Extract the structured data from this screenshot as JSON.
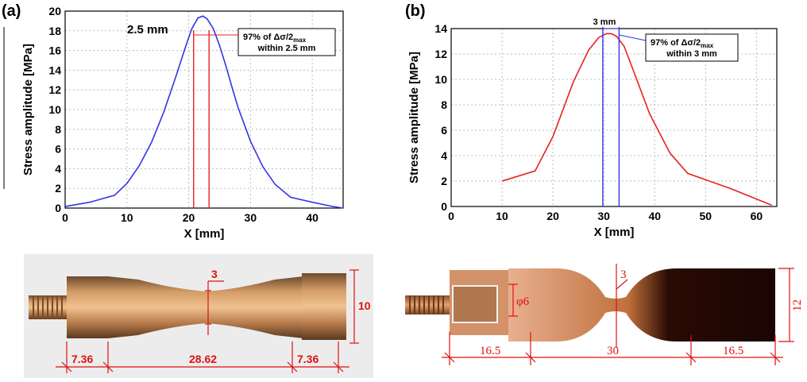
{
  "panels": {
    "a": {
      "label": "(a)"
    },
    "b": {
      "label": "(b)"
    }
  },
  "chart_data": [
    {
      "type": "line",
      "title": "",
      "xlabel": "X [mm]",
      "ylabel": "Stress amplitude [MPa]",
      "xlim": [
        0,
        45
      ],
      "ylim": [
        0,
        20
      ],
      "xticks": [
        0,
        10,
        20,
        30,
        40
      ],
      "yticks": [
        0,
        2,
        4,
        6,
        8,
        10,
        12,
        14,
        16,
        18,
        20
      ],
      "grid": true,
      "line_color": "#3333e6",
      "marker_color": "#e82020",
      "series": [
        {
          "x": [
            0,
            4,
            8,
            10,
            12,
            14,
            16,
            18,
            19.5,
            20.5,
            21.5,
            22.3,
            23,
            24,
            25,
            26,
            27,
            28,
            30,
            32,
            34,
            36.5,
            40,
            43,
            45
          ],
          "y": [
            0.15,
            0.6,
            1.3,
            2.5,
            4.3,
            6.7,
            9.8,
            13.5,
            16.4,
            18.2,
            19.3,
            19.5,
            19.2,
            18.2,
            16.5,
            14.5,
            12.3,
            10.2,
            6.8,
            4.2,
            2.4,
            1.1,
            0.6,
            0.2,
            0.0
          ]
        }
      ],
      "annotations": {
        "span_label": "2.5 mm",
        "box_line1": "97% of Δσ/2",
        "box_sub": "max",
        "box_line2": "within 2.5 mm",
        "markers_x": [
          20.8,
          23.3
        ]
      }
    },
    {
      "type": "line",
      "title": "",
      "xlabel": "X [mm]",
      "ylabel": "Stress amplitude [MPa]",
      "xlim": [
        0,
        64
      ],
      "ylim": [
        0,
        14
      ],
      "xticks": [
        0,
        10,
        20,
        30,
        40,
        50,
        60
      ],
      "yticks": [
        0,
        2,
        4,
        6,
        8,
        10,
        12,
        14
      ],
      "grid": true,
      "line_color": "#e82020",
      "marker_color": "#3333e6",
      "series": [
        {
          "x": [
            10,
            16.5,
            20,
            24,
            27,
            29,
            30.5,
            31.5,
            32.5,
            34,
            36,
            39,
            43,
            46.5,
            55,
            63
          ],
          "y": [
            2.0,
            2.8,
            5.5,
            9.8,
            12.3,
            13.3,
            13.6,
            13.6,
            13.4,
            12.6,
            10.5,
            7.3,
            4.2,
            2.6,
            1.4,
            0.1
          ]
        }
      ],
      "annotations": {
        "span_label": "3 mm",
        "box_line1": "97% of Δσ/2",
        "box_sub": "max",
        "box_line2": "within 3 mm",
        "markers_x": [
          29.8,
          33.0
        ]
      }
    }
  ],
  "photos": {
    "a": {
      "dims": [
        "3",
        "10",
        "7.36",
        "28.62",
        "7.36"
      ]
    },
    "b": {
      "dims": [
        "3",
        "φ6",
        "12",
        "16.5",
        "30",
        "16.5"
      ]
    }
  }
}
